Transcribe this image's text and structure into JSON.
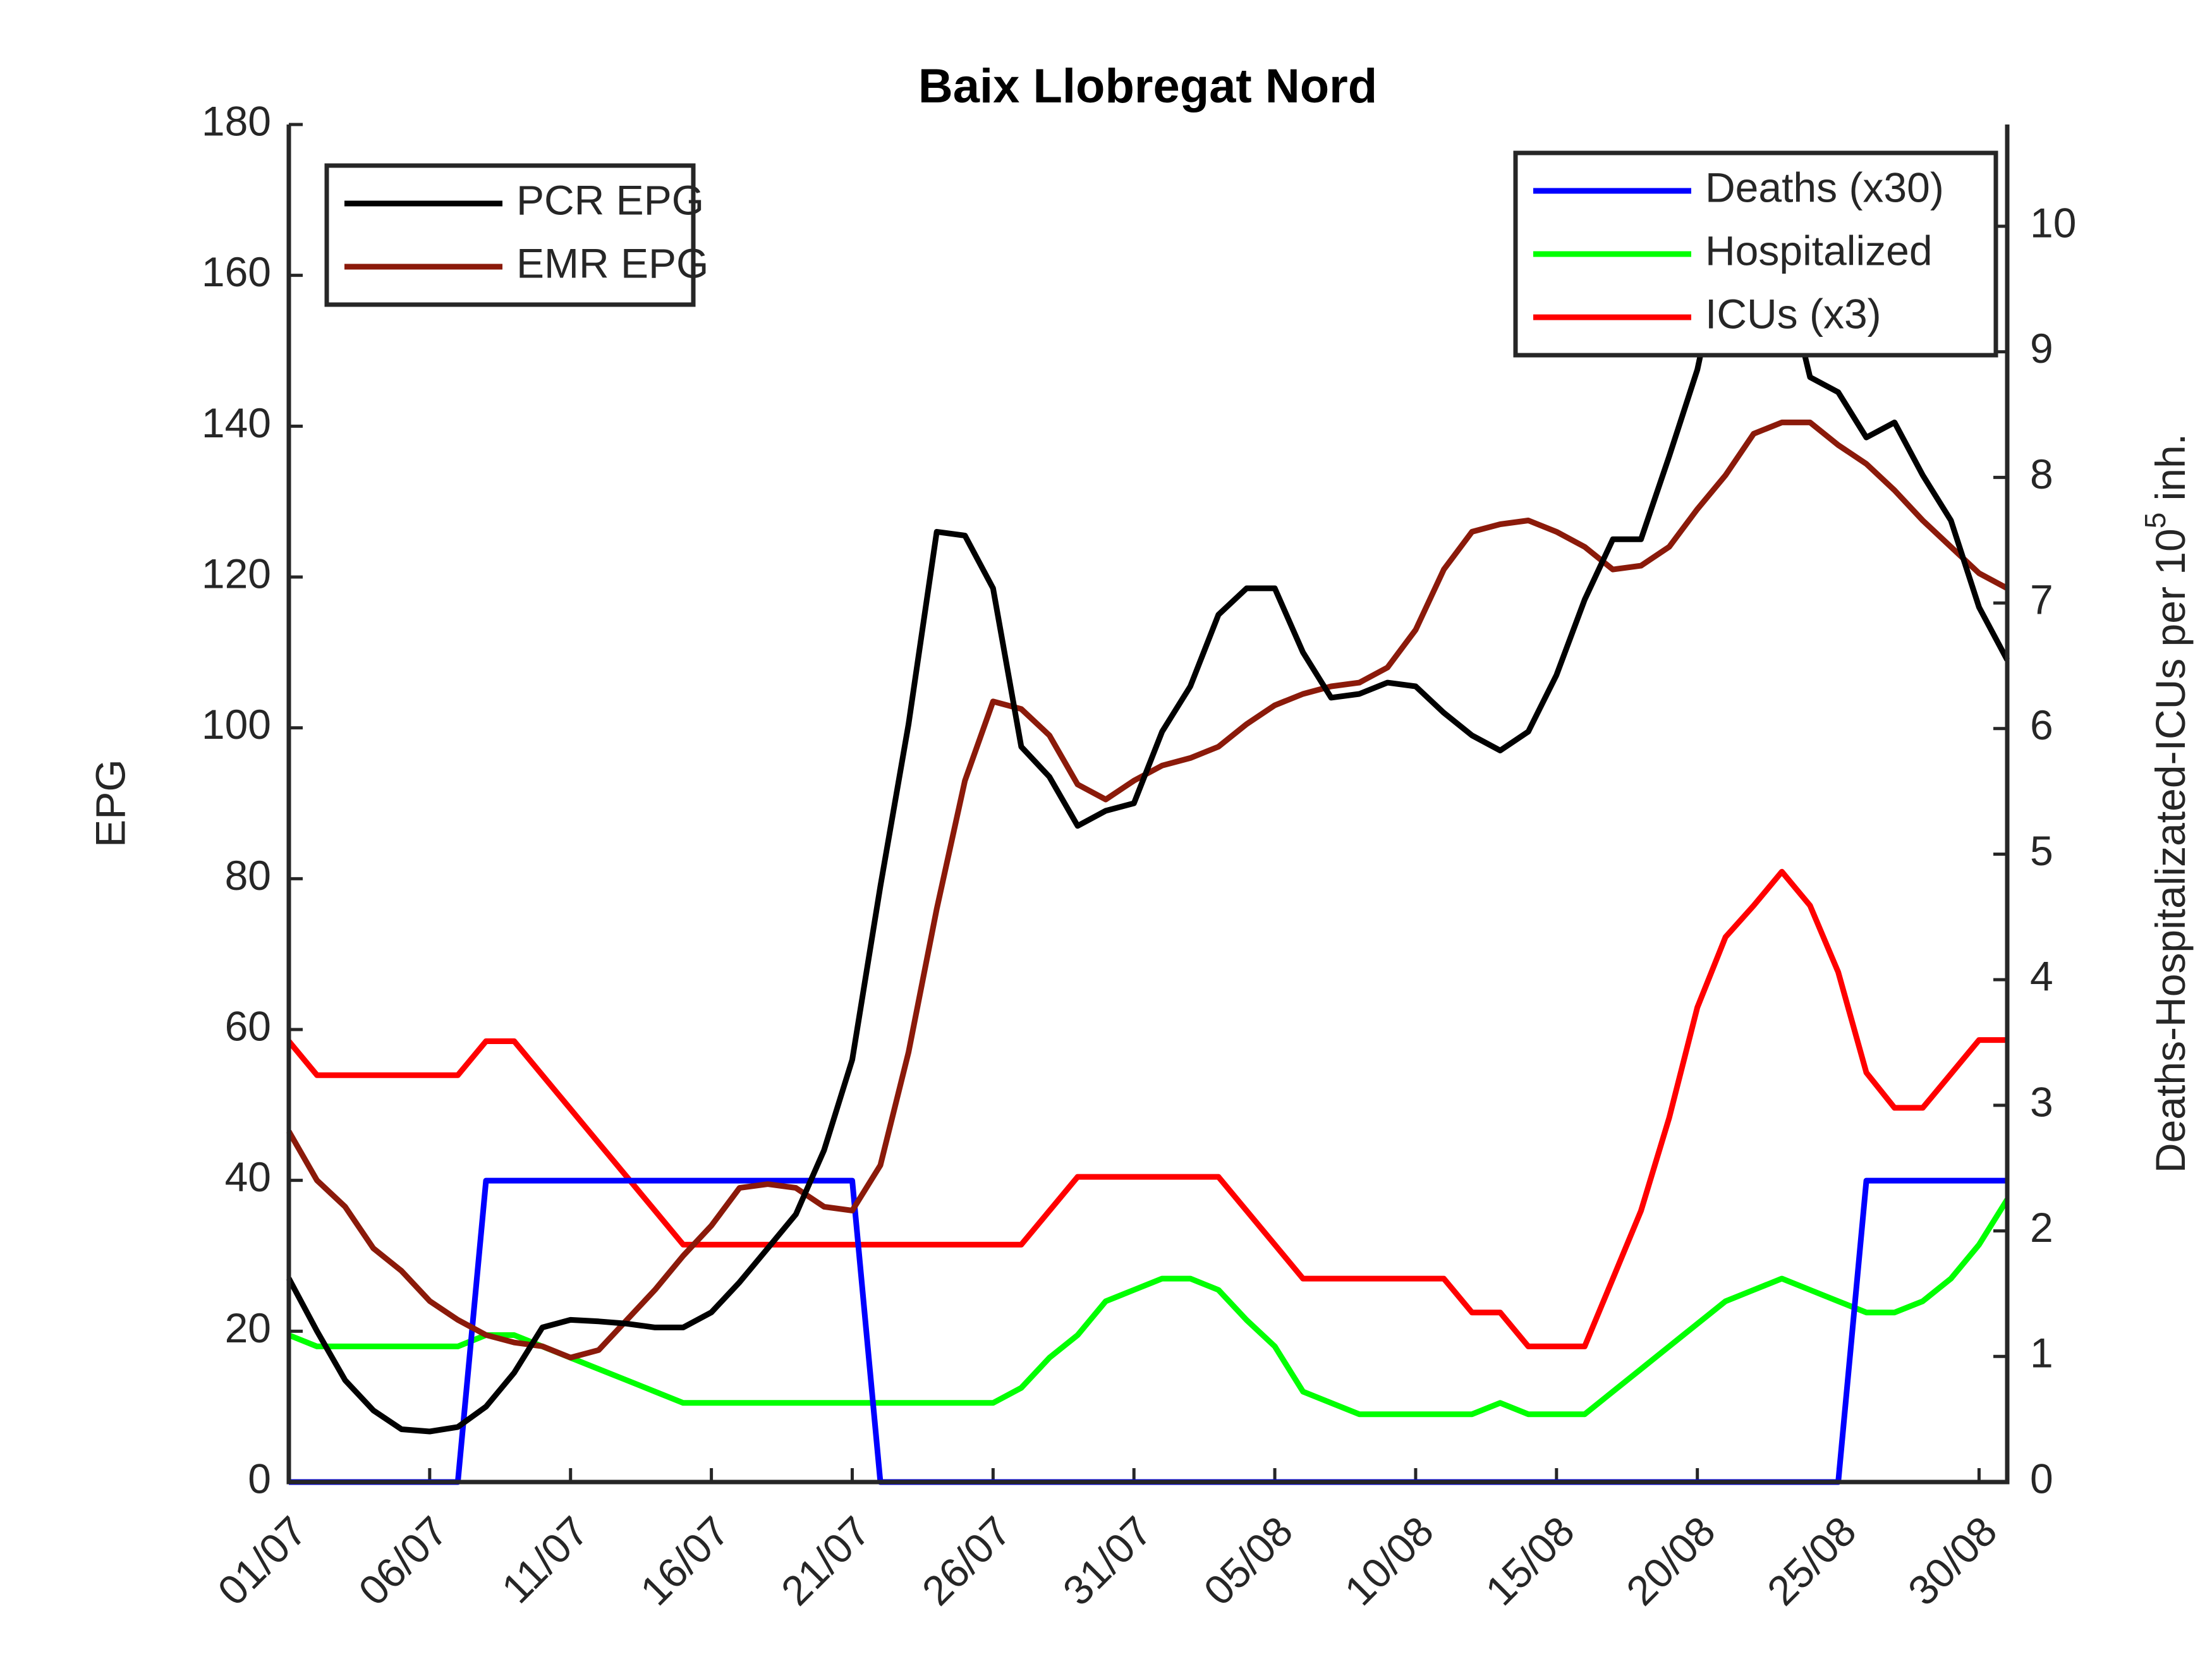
{
  "chart_data": {
    "type": "line",
    "title": "Baix Llobregat Nord",
    "ylabel": "EPG",
    "y2label": {
      "text": "Deaths-Hospitalizated-ICUs per 10",
      "sup": "5",
      "tail": " inh."
    },
    "categories": [
      "01/07",
      null,
      null,
      null,
      null,
      "06/07",
      null,
      null,
      null,
      null,
      "11/07",
      null,
      null,
      null,
      null,
      "16/07",
      null,
      null,
      null,
      null,
      "21/07",
      null,
      null,
      null,
      null,
      "26/07",
      null,
      null,
      null,
      null,
      "31/07",
      null,
      null,
      null,
      null,
      "05/08",
      null,
      null,
      null,
      null,
      "10/08",
      null,
      null,
      null,
      null,
      "15/08",
      null,
      null,
      null,
      null,
      "20/08",
      null,
      null,
      null,
      null,
      "25/08",
      null,
      null,
      null,
      null,
      "30/08",
      null
    ],
    "ylim": [
      0,
      180
    ],
    "yticks": [
      0,
      20,
      40,
      60,
      80,
      100,
      120,
      140,
      160,
      180
    ],
    "y2lim": [
      0,
      10.81
    ],
    "y2ticks": [
      0,
      1,
      2,
      3,
      4,
      5,
      6,
      7,
      8,
      9,
      10
    ],
    "legend_loc": "upper left",
    "legend2_loc": "upper right",
    "series": [
      {
        "name": "PCR EPG",
        "color": "#000000",
        "values": [
          27,
          20,
          13.5,
          9.5,
          7,
          6.7,
          7.3,
          10,
          14.5,
          20.5,
          21.5,
          21.3,
          21,
          20.5,
          20.5,
          22.5,
          26.5,
          31,
          35.5,
          44,
          56,
          79,
          100.5,
          126,
          125.5,
          118.5,
          97.5,
          93.5,
          87,
          89,
          90,
          99.5,
          105.5,
          115,
          118.5,
          118.5,
          110,
          104,
          104.5,
          106,
          105.5,
          102,
          99,
          97,
          99.5,
          107,
          117,
          125,
          125,
          136,
          147.5,
          165,
          170,
          162,
          146.5,
          144.5,
          138.5,
          140.5,
          133.5,
          127.5,
          116,
          109
        ]
      },
      {
        "name": "EMR EPG",
        "color": "#8b1a0a",
        "values": [
          46.5,
          40,
          36.5,
          31,
          28,
          24,
          21.5,
          19.5,
          18.5,
          18,
          16.5,
          17.5,
          21.5,
          25.5,
          30,
          34,
          39,
          39.5,
          39,
          36.5,
          36,
          42,
          57,
          76,
          93,
          103.5,
          102.5,
          99,
          92.5,
          90.5,
          93,
          95,
          96,
          97.5,
          100.5,
          103,
          104.5,
          105.5,
          106,
          108,
          113,
          121,
          126,
          127,
          127.5,
          126,
          124,
          121,
          121.5,
          124,
          129,
          133.5,
          139,
          140.5,
          140.5,
          137.5,
          135,
          131.5,
          127.5,
          124,
          120.5,
          118.5
        ]
      },
      {
        "name": "Deaths (x30)",
        "color": "#0000ff",
        "axis": "y2",
        "values": [
          0,
          0,
          0,
          0,
          0,
          0,
          0,
          2.4,
          2.4,
          2.4,
          2.4,
          2.4,
          2.4,
          2.4,
          2.4,
          2.4,
          2.4,
          2.4,
          2.4,
          2.4,
          2.4,
          0,
          0,
          0,
          0,
          0,
          0,
          0,
          0,
          0,
          0,
          0,
          0,
          0,
          0,
          0,
          0,
          0,
          0,
          0,
          0,
          0,
          0,
          0,
          0,
          0,
          0,
          0,
          0,
          0,
          0,
          0,
          0,
          0,
          0,
          0,
          2.4,
          2.4,
          2.4,
          2.4,
          2.4,
          2.4
        ]
      },
      {
        "name": "Hospitalized",
        "color": "#00ff00",
        "axis": "y2",
        "values": [
          1.17,
          1.08,
          1.08,
          1.08,
          1.08,
          1.08,
          1.08,
          1.17,
          1.17,
          1.08,
          0.99,
          0.9,
          0.81,
          0.72,
          0.63,
          0.63,
          0.63,
          0.63,
          0.63,
          0.63,
          0.63,
          0.63,
          0.63,
          0.63,
          0.63,
          0.63,
          0.75,
          0.99,
          1.17,
          1.44,
          1.53,
          1.62,
          1.62,
          1.53,
          1.29,
          1.08,
          0.72,
          0.63,
          0.54,
          0.54,
          0.54,
          0.54,
          0.54,
          0.63,
          0.54,
          0.54,
          0.54,
          0.72,
          0.9,
          1.08,
          1.26,
          1.44,
          1.53,
          1.62,
          1.53,
          1.44,
          1.35,
          1.35,
          1.44,
          1.62,
          1.89,
          2.25
        ]
      },
      {
        "name": "ICUs (x3)",
        "color": "#ff0000",
        "axis": "y2",
        "values": [
          3.51,
          3.24,
          3.24,
          3.24,
          3.24,
          3.24,
          3.24,
          3.51,
          3.51,
          3.24,
          2.97,
          2.7,
          2.43,
          2.16,
          1.89,
          1.89,
          1.89,
          1.89,
          1.89,
          1.89,
          1.89,
          1.89,
          1.89,
          1.89,
          1.89,
          1.89,
          1.89,
          2.16,
          2.43,
          2.43,
          2.43,
          2.43,
          2.43,
          2.43,
          2.16,
          1.89,
          1.62,
          1.62,
          1.62,
          1.62,
          1.62,
          1.62,
          1.35,
          1.35,
          1.08,
          1.08,
          1.08,
          1.62,
          2.16,
          2.9,
          3.78,
          4.34,
          4.59,
          4.86,
          4.59,
          4.06,
          3.26,
          2.98,
          2.98,
          3.25,
          3.52,
          3.52
        ]
      }
    ]
  }
}
